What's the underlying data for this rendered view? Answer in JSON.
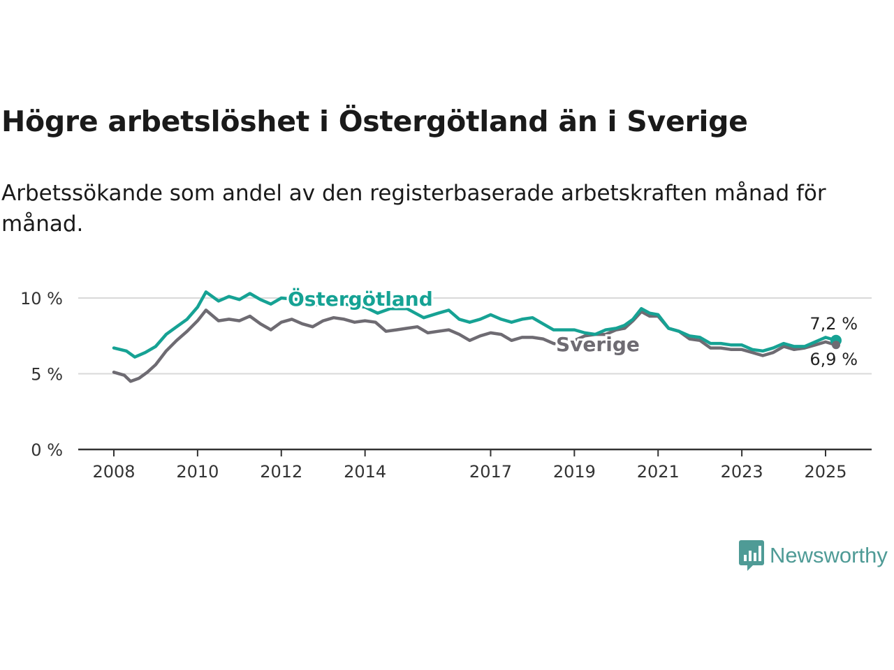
{
  "title": "Högre arbetslöshet i Östergötland än i Sverige",
  "subtitle": "Arbetssökande som andel av den registerbaserade arbetskraften månad för månad.",
  "brand": {
    "name": "Newsworthy",
    "icon": "newsworthy-logo-icon",
    "color": "#4f9b96"
  },
  "colors": {
    "ostergotland": "#16a294",
    "sverige": "#6e6b72",
    "grid": "#d9d9d9",
    "axis": "#333333"
  },
  "chart_data": {
    "type": "line",
    "title": "Högre arbetslöshet i Östergötland än i Sverige",
    "subtitle": "Arbetssökande som andel av den registerbaserade arbetskraften månad för månad.",
    "xlabel": "",
    "ylabel": "",
    "xlim": [
      2008,
      2025.5
    ],
    "ylim": [
      0,
      10
    ],
    "grid": true,
    "x_ticks": [
      2008,
      2010,
      2012,
      2014,
      2017,
      2019,
      2021,
      2023,
      2025
    ],
    "x_tick_labels": [
      "2008",
      "2010",
      "2012",
      "2014",
      "2017",
      "2019",
      "2021",
      "2023",
      "2025"
    ],
    "y_ticks": [
      0,
      5,
      10
    ],
    "y_tick_labels": [
      "0 %",
      "5 %",
      "10 %"
    ],
    "series": [
      {
        "name": "Östergötland",
        "color": "#16a294",
        "end_label": "7,2 %",
        "points": [
          [
            2008.0,
            6.7
          ],
          [
            2008.3,
            6.5
          ],
          [
            2008.5,
            6.1
          ],
          [
            2008.75,
            6.4
          ],
          [
            2009.0,
            6.8
          ],
          [
            2009.25,
            7.6
          ],
          [
            2009.5,
            8.1
          ],
          [
            2009.75,
            8.6
          ],
          [
            2010.0,
            9.4
          ],
          [
            2010.2,
            10.4
          ],
          [
            2010.5,
            9.8
          ],
          [
            2010.75,
            10.1
          ],
          [
            2011.0,
            9.9
          ],
          [
            2011.25,
            10.3
          ],
          [
            2011.5,
            9.9
          ],
          [
            2011.75,
            9.6
          ],
          [
            2012.0,
            10.0
          ],
          [
            2012.4,
            9.9
          ],
          [
            2012.75,
            9.6
          ],
          [
            2013.0,
            9.5
          ],
          [
            2013.25,
            9.7
          ],
          [
            2013.5,
            9.6
          ],
          [
            2013.75,
            9.5
          ],
          [
            2014.0,
            9.4
          ],
          [
            2014.3,
            9.0
          ],
          [
            2014.6,
            9.3
          ],
          [
            2015.0,
            9.3
          ],
          [
            2015.4,
            8.7
          ],
          [
            2015.75,
            9.0
          ],
          [
            2016.0,
            9.2
          ],
          [
            2016.25,
            8.6
          ],
          [
            2016.5,
            8.4
          ],
          [
            2016.75,
            8.6
          ],
          [
            2017.0,
            8.9
          ],
          [
            2017.25,
            8.6
          ],
          [
            2017.5,
            8.4
          ],
          [
            2017.75,
            8.6
          ],
          [
            2018.0,
            8.7
          ],
          [
            2018.25,
            8.3
          ],
          [
            2018.5,
            7.9
          ],
          [
            2018.75,
            7.9
          ],
          [
            2019.0,
            7.9
          ],
          [
            2019.25,
            7.7
          ],
          [
            2019.5,
            7.6
          ],
          [
            2019.75,
            7.9
          ],
          [
            2020.0,
            8.0
          ],
          [
            2020.2,
            8.2
          ],
          [
            2020.4,
            8.6
          ],
          [
            2020.6,
            9.3
          ],
          [
            2020.8,
            9.0
          ],
          [
            2021.0,
            8.9
          ],
          [
            2021.25,
            8.0
          ],
          [
            2021.5,
            7.8
          ],
          [
            2021.75,
            7.5
          ],
          [
            2022.0,
            7.4
          ],
          [
            2022.25,
            7.0
          ],
          [
            2022.5,
            7.0
          ],
          [
            2022.75,
            6.9
          ],
          [
            2023.0,
            6.9
          ],
          [
            2023.25,
            6.6
          ],
          [
            2023.5,
            6.5
          ],
          [
            2023.75,
            6.7
          ],
          [
            2024.0,
            7.0
          ],
          [
            2024.25,
            6.8
          ],
          [
            2024.5,
            6.8
          ],
          [
            2024.75,
            7.1
          ],
          [
            2025.0,
            7.4
          ],
          [
            2025.25,
            7.2
          ]
        ]
      },
      {
        "name": "Sverige",
        "color": "#6e6b72",
        "end_label": "6,9 %",
        "points": [
          [
            2008.0,
            5.1
          ],
          [
            2008.25,
            4.9
          ],
          [
            2008.4,
            4.5
          ],
          [
            2008.6,
            4.7
          ],
          [
            2008.8,
            5.1
          ],
          [
            2009.0,
            5.6
          ],
          [
            2009.25,
            6.5
          ],
          [
            2009.5,
            7.2
          ],
          [
            2009.75,
            7.8
          ],
          [
            2010.0,
            8.5
          ],
          [
            2010.2,
            9.2
          ],
          [
            2010.5,
            8.5
          ],
          [
            2010.75,
            8.6
          ],
          [
            2011.0,
            8.5
          ],
          [
            2011.25,
            8.8
          ],
          [
            2011.5,
            8.3
          ],
          [
            2011.75,
            7.9
          ],
          [
            2012.0,
            8.4
          ],
          [
            2012.25,
            8.6
          ],
          [
            2012.5,
            8.3
          ],
          [
            2012.75,
            8.1
          ],
          [
            2013.0,
            8.5
          ],
          [
            2013.25,
            8.7
          ],
          [
            2013.5,
            8.6
          ],
          [
            2013.75,
            8.4
          ],
          [
            2014.0,
            8.5
          ],
          [
            2014.25,
            8.4
          ],
          [
            2014.5,
            7.8
          ],
          [
            2014.75,
            7.9
          ],
          [
            2015.0,
            8.0
          ],
          [
            2015.25,
            8.1
          ],
          [
            2015.5,
            7.7
          ],
          [
            2015.75,
            7.8
          ],
          [
            2016.0,
            7.9
          ],
          [
            2016.25,
            7.6
          ],
          [
            2016.5,
            7.2
          ],
          [
            2016.75,
            7.5
          ],
          [
            2017.0,
            7.7
          ],
          [
            2017.25,
            7.6
          ],
          [
            2017.5,
            7.2
          ],
          [
            2017.75,
            7.4
          ],
          [
            2018.0,
            7.4
          ],
          [
            2018.25,
            7.3
          ],
          [
            2018.5,
            7.0
          ],
          [
            2018.75,
            6.9
          ],
          [
            2019.0,
            7.2
          ],
          [
            2019.25,
            7.5
          ],
          [
            2019.5,
            7.6
          ],
          [
            2019.75,
            7.6
          ],
          [
            2020.0,
            7.9
          ],
          [
            2020.2,
            8.0
          ],
          [
            2020.4,
            8.5
          ],
          [
            2020.6,
            9.1
          ],
          [
            2020.8,
            8.8
          ],
          [
            2021.0,
            8.8
          ],
          [
            2021.25,
            8.0
          ],
          [
            2021.5,
            7.8
          ],
          [
            2021.75,
            7.3
          ],
          [
            2022.0,
            7.2
          ],
          [
            2022.25,
            6.7
          ],
          [
            2022.5,
            6.7
          ],
          [
            2022.75,
            6.6
          ],
          [
            2023.0,
            6.6
          ],
          [
            2023.25,
            6.4
          ],
          [
            2023.5,
            6.2
          ],
          [
            2023.75,
            6.4
          ],
          [
            2024.0,
            6.8
          ],
          [
            2024.25,
            6.6
          ],
          [
            2024.5,
            6.7
          ],
          [
            2024.75,
            6.9
          ],
          [
            2025.0,
            7.1
          ],
          [
            2025.25,
            6.9
          ]
        ]
      }
    ]
  }
}
